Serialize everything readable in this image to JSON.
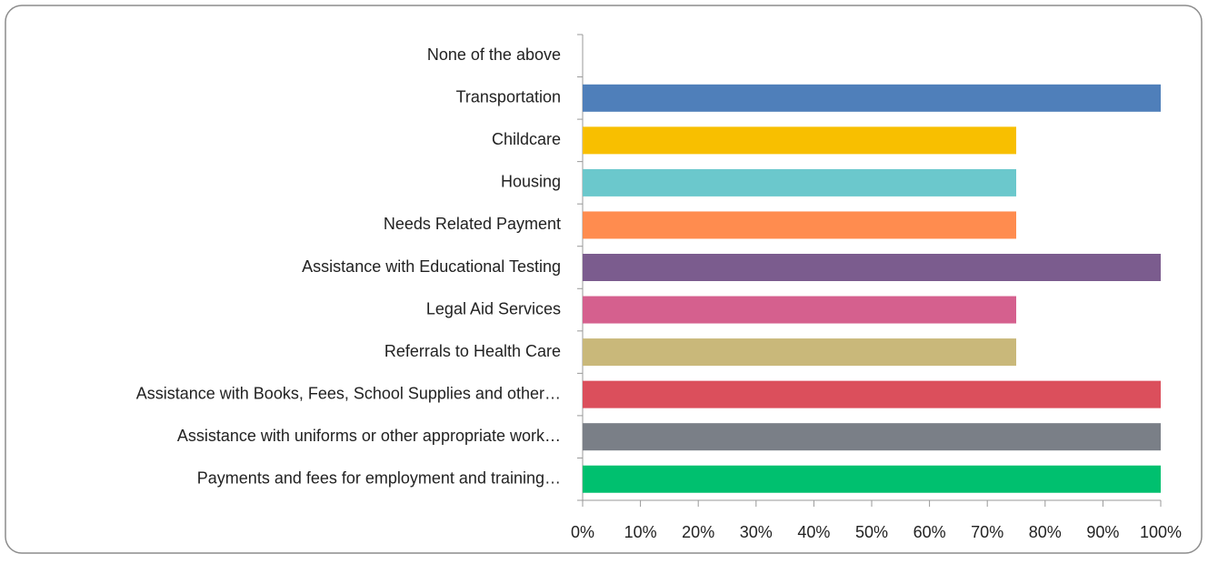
{
  "chart_data": {
    "type": "barh",
    "categories": [
      "None of the above",
      "Transportation",
      "Childcare",
      "Housing",
      "Needs Related Payment",
      "Assistance with Educational Testing",
      "Legal Aid Services",
      "Referrals to Health Care",
      "Assistance with Books, Fees, School Supplies and other…",
      "Assistance with uniforms or other appropriate work…",
      "Payments and fees for employment and training…"
    ],
    "values": [
      0,
      100,
      75,
      75,
      75,
      100,
      75,
      75,
      100,
      100,
      100
    ],
    "colors": [
      null,
      "#4f7fba",
      "#f8bf00",
      "#6bc8cc",
      "#ff8c4f",
      "#7b5c8e",
      "#d5608e",
      "#c9b87a",
      "#db4f5c",
      "#7a7f87",
      "#00c06f"
    ],
    "xlim": [
      0,
      100
    ],
    "xticks": [
      {
        "value": 0,
        "label": "0%"
      },
      {
        "value": 10,
        "label": "10%"
      },
      {
        "value": 20,
        "label": "20%"
      },
      {
        "value": 30,
        "label": "30%"
      },
      {
        "value": 40,
        "label": "40%"
      },
      {
        "value": 50,
        "label": "50%"
      },
      {
        "value": 60,
        "label": "60%"
      },
      {
        "value": 70,
        "label": "70%"
      },
      {
        "value": 80,
        "label": "80%"
      },
      {
        "value": 90,
        "label": "90%"
      },
      {
        "value": 100,
        "label": "100%"
      }
    ]
  }
}
